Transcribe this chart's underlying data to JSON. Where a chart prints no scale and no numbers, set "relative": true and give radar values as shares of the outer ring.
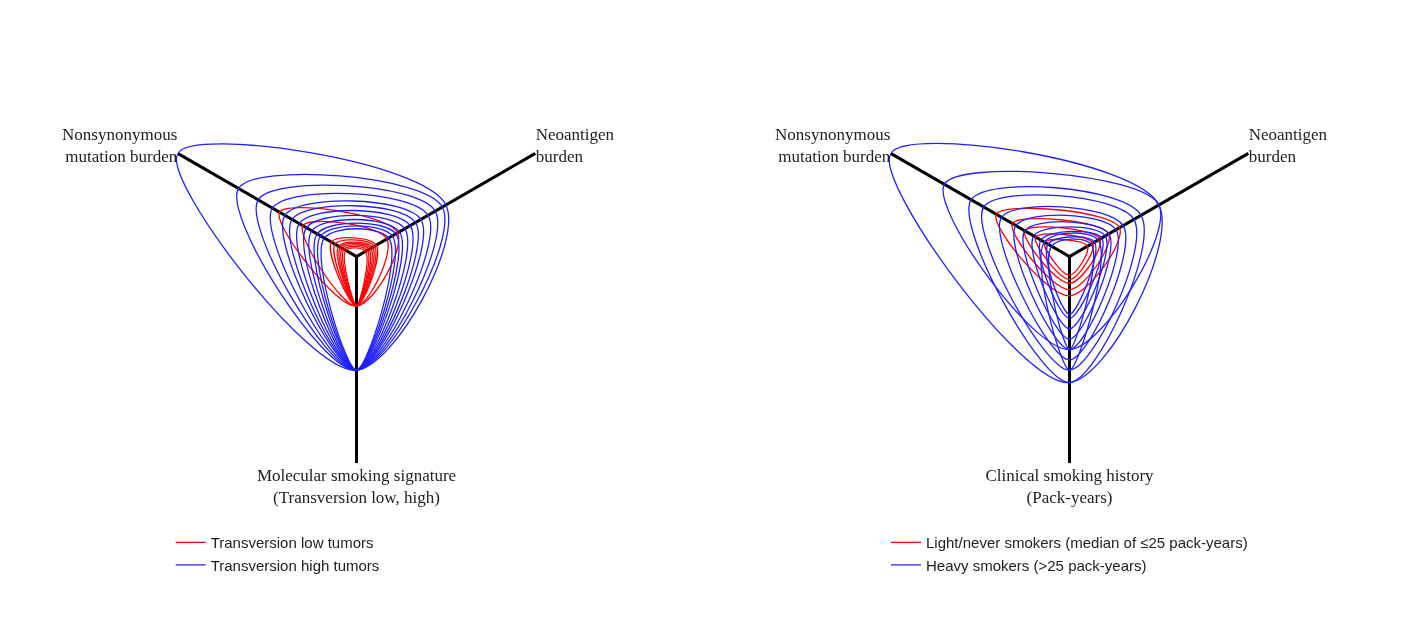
{
  "chart_data": [
    {
      "type": "radar",
      "relative": true,
      "legend": "bottom left",
      "categories": [
        "Neoantigen\nburden",
        "Molecular smoking signature\n(Transversion low, high)",
        "Nonsynonymous\nmutation burden"
      ],
      "series": [
        {
          "name": "Transversion low tumors",
          "color": "#ff0000",
          "values": [
            0.23,
            0.24,
            0.43
          ]
        },
        {
          "color": "#ff0000",
          "values": [
            0.17,
            0.24,
            0.3
          ]
        },
        {
          "color": "#ff0000",
          "values": [
            0.11,
            0.24,
            0.14
          ]
        },
        {
          "color": "#ff0000",
          "values": [
            0.1,
            0.24,
            0.12
          ]
        },
        {
          "color": "#ff0000",
          "values": [
            0.09,
            0.24,
            0.1
          ]
        },
        {
          "color": "#ff0000",
          "values": [
            0.08,
            0.24,
            0.09
          ]
        },
        {
          "color": "#ff0000",
          "values": [
            0.07,
            0.24,
            0.08
          ]
        },
        {
          "color": "#ff0000",
          "values": [
            0.06,
            0.24,
            0.07
          ]
        },
        {
          "color": "#ff0000",
          "values": [
            0.05,
            0.24,
            0.06
          ]
        },
        {
          "name": "Transversion high tumors",
          "color": "#2020ff",
          "values": [
            0.5,
            0.55,
            1.0
          ]
        },
        {
          "color": "#2020ff",
          "values": [
            0.48,
            0.55,
            0.66
          ]
        },
        {
          "color": "#2020ff",
          "values": [
            0.44,
            0.55,
            0.55
          ]
        },
        {
          "color": "#2020ff",
          "values": [
            0.4,
            0.55,
            0.47
          ]
        },
        {
          "color": "#2020ff",
          "values": [
            0.36,
            0.55,
            0.4
          ]
        },
        {
          "color": "#2020ff",
          "values": [
            0.33,
            0.55,
            0.36
          ]
        },
        {
          "color": "#2020ff",
          "values": [
            0.3,
            0.55,
            0.32
          ]
        },
        {
          "color": "#2020ff",
          "values": [
            0.27,
            0.55,
            0.28
          ]
        },
        {
          "color": "#2020ff",
          "values": [
            0.24,
            0.55,
            0.25
          ]
        },
        {
          "color": "#2020ff",
          "values": [
            0.22,
            0.55,
            0.22
          ]
        },
        {
          "color": "#2020ff",
          "values": [
            0.2,
            0.55,
            0.2
          ]
        },
        {
          "color": "#2020ff",
          "values": [
            0.18,
            0.55,
            0.18
          ]
        }
      ]
    },
    {
      "type": "radar",
      "relative": true,
      "legend": "bottom",
      "categories": [
        "Neoantigen\nburden",
        "Clinical smoking history\n(Pack-years)",
        "Nonsynonymous\nmutation burden"
      ],
      "series": [
        {
          "name": "Light/never smokers (median of ≤25 pack-years)",
          "color": "#ff0000",
          "values": [
            0.28,
            0.19,
            0.41
          ]
        },
        {
          "color": "#ff0000",
          "values": [
            0.22,
            0.16,
            0.32
          ]
        },
        {
          "color": "#ff0000",
          "values": [
            0.17,
            0.13,
            0.25
          ]
        },
        {
          "color": "#ff0000",
          "values": [
            0.13,
            0.11,
            0.19
          ]
        },
        {
          "color": "#ff0000",
          "values": [
            0.1,
            0.09,
            0.14
          ]
        },
        {
          "name": "Heavy smokers (>25 pack-years)",
          "color": "#2020ff",
          "values": [
            0.5,
            0.61,
            1.0
          ]
        },
        {
          "color": "#2020ff",
          "values": [
            0.5,
            0.45,
            0.7
          ]
        },
        {
          "color": "#2020ff",
          "values": [
            0.4,
            0.61,
            0.55
          ]
        },
        {
          "color": "#2020ff",
          "values": [
            0.36,
            0.55,
            0.48
          ]
        },
        {
          "color": "#2020ff",
          "values": [
            0.3,
            0.5,
            0.38
          ]
        },
        {
          "color": "#2020ff",
          "values": [
            0.26,
            0.45,
            0.3
          ]
        },
        {
          "color": "#2020ff",
          "values": [
            0.22,
            0.4,
            0.25
          ]
        },
        {
          "color": "#2020ff",
          "values": [
            0.2,
            0.35,
            0.2
          ]
        },
        {
          "color": "#2020ff",
          "values": [
            0.18,
            0.3,
            0.16
          ]
        },
        {
          "color": "#2020ff",
          "values": [
            0.14,
            0.28,
            0.12
          ]
        },
        {
          "color": "#2020ff",
          "values": [
            0.16,
            0.55,
            0.14
          ]
        },
        {
          "color": "#2020ff",
          "values": [
            0.12,
            0.45,
            0.1
          ]
        }
      ]
    }
  ]
}
